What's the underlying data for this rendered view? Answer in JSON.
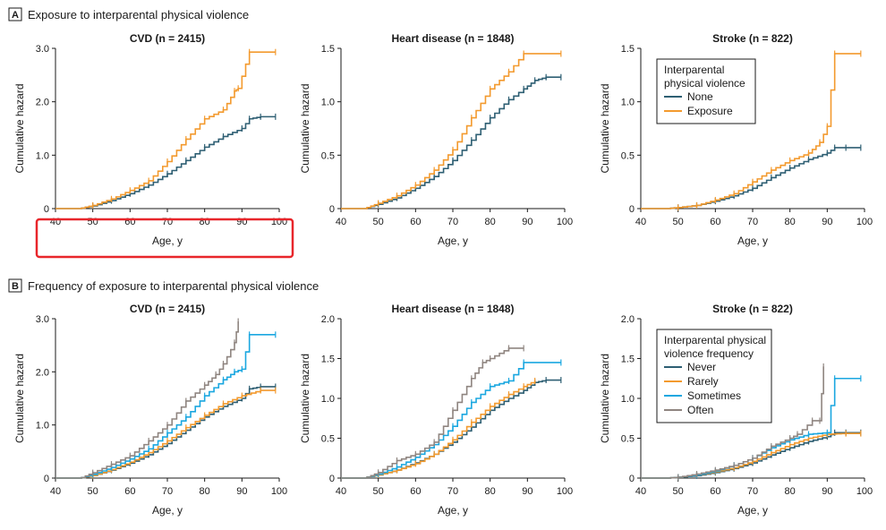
{
  "colors": {
    "none": "#2e5f73",
    "exposure": "#f39a2e",
    "never": "#2e5f73",
    "rarely": "#f39a2e",
    "sometimes": "#1aa7e0",
    "often": "#8f8580",
    "highlight": "#e8262b"
  },
  "sections": [
    {
      "letter": "A",
      "title": "Exposure to interparental physical violence"
    },
    {
      "letter": "B",
      "title": "Frequency of exposure to interparental physical violence"
    }
  ],
  "legends": [
    {
      "title_lines": [
        "Interparental",
        "physical violence"
      ],
      "items": [
        "None",
        "Exposure"
      ]
    },
    {
      "title_lines": [
        "Interparental physical",
        "violence frequency"
      ],
      "items": [
        "Never",
        "Rarely",
        "Sometimes",
        "Often"
      ]
    }
  ],
  "chart_data": [
    {
      "type": "line",
      "section": "A",
      "title": "CVD (n = 2415)",
      "xlabel": "Age, y",
      "ylabel": "Cumulative hazard",
      "xlim": [
        40,
        100
      ],
      "ylim": [
        0,
        3
      ],
      "xticks": [
        "40",
        "50",
        "60",
        "70",
        "80",
        "90",
        "100"
      ],
      "yticks": [
        "0",
        "1.0",
        "2.0",
        "3.0"
      ],
      "series": [
        {
          "name": "None",
          "color_key": "none",
          "x": [
            47,
            50,
            55,
            60,
            65,
            70,
            75,
            80,
            85,
            90,
            92,
            95,
            99
          ],
          "y": [
            0.01,
            0.05,
            0.15,
            0.28,
            0.44,
            0.65,
            0.9,
            1.15,
            1.35,
            1.5,
            1.68,
            1.72,
            1.72
          ]
        },
        {
          "name": "Exposure",
          "color_key": "exposure",
          "x": [
            47,
            50,
            55,
            60,
            65,
            70,
            75,
            80,
            85,
            88,
            89,
            92,
            99
          ],
          "y": [
            0.01,
            0.06,
            0.18,
            0.34,
            0.52,
            0.88,
            1.3,
            1.68,
            1.85,
            2.2,
            2.25,
            2.93,
            2.93
          ]
        }
      ]
    },
    {
      "type": "line",
      "section": "A",
      "title": "Heart disease (n = 1848)",
      "xlabel": "Age, y",
      "ylabel": "Cumulative hazard",
      "xlim": [
        40,
        100
      ],
      "ylim": [
        0,
        1.5
      ],
      "xticks": [
        "40",
        "50",
        "60",
        "70",
        "80",
        "90",
        "100"
      ],
      "yticks": [
        "0",
        "0.5",
        "1.0",
        "1.5"
      ],
      "series": [
        {
          "name": "None",
          "color_key": "none",
          "x": [
            47,
            50,
            55,
            60,
            65,
            70,
            75,
            80,
            85,
            89,
            92,
            95,
            99
          ],
          "y": [
            0.01,
            0.04,
            0.1,
            0.19,
            0.3,
            0.45,
            0.64,
            0.85,
            1.02,
            1.12,
            1.2,
            1.23,
            1.23
          ]
        },
        {
          "name": "Exposure",
          "color_key": "exposure",
          "x": [
            47,
            50,
            55,
            60,
            65,
            70,
            75,
            80,
            85,
            89,
            99
          ],
          "y": [
            0.01,
            0.05,
            0.12,
            0.22,
            0.36,
            0.55,
            0.85,
            1.12,
            1.28,
            1.45,
            1.45
          ]
        }
      ]
    },
    {
      "type": "line",
      "section": "A",
      "title": "Stroke (n = 822)",
      "xlabel": "Age, y",
      "ylabel": "Cumulative hazard",
      "xlim": [
        40,
        100
      ],
      "ylim": [
        0,
        1.5
      ],
      "xticks": [
        "40",
        "50",
        "60",
        "70",
        "80",
        "90",
        "100"
      ],
      "yticks": [
        "0",
        "0.5",
        "1.0",
        "1.5"
      ],
      "legend_index": 0,
      "legend_position": "top-left",
      "series": [
        {
          "name": "None",
          "color_key": "none",
          "x": [
            47,
            50,
            55,
            60,
            65,
            70,
            75,
            80,
            85,
            90,
            92,
            95,
            99
          ],
          "y": [
            0.0,
            0.01,
            0.03,
            0.07,
            0.12,
            0.19,
            0.29,
            0.38,
            0.46,
            0.52,
            0.57,
            0.57,
            0.57
          ]
        },
        {
          "name": "Exposure",
          "color_key": "exposure",
          "x": [
            47,
            50,
            55,
            60,
            65,
            70,
            75,
            80,
            85,
            88,
            90,
            92,
            99
          ],
          "y": [
            0.0,
            0.01,
            0.03,
            0.08,
            0.14,
            0.25,
            0.36,
            0.45,
            0.52,
            0.62,
            0.77,
            1.45,
            1.45
          ]
        }
      ]
    },
    {
      "type": "line",
      "section": "B",
      "title": "CVD (n = 2415)",
      "xlabel": "Age, y",
      "ylabel": "Cumulative hazard",
      "xlim": [
        40,
        100
      ],
      "ylim": [
        0,
        3
      ],
      "xticks": [
        "40",
        "50",
        "60",
        "70",
        "80",
        "90",
        "100"
      ],
      "yticks": [
        "0",
        "1.0",
        "2.0",
        "3.0"
      ],
      "series": [
        {
          "name": "Never",
          "color_key": "never",
          "x": [
            47,
            50,
            55,
            60,
            65,
            70,
            75,
            80,
            85,
            90,
            92,
            95,
            99
          ],
          "y": [
            0.01,
            0.05,
            0.15,
            0.28,
            0.44,
            0.65,
            0.9,
            1.15,
            1.35,
            1.5,
            1.68,
            1.72,
            1.72
          ]
        },
        {
          "name": "Rarely",
          "color_key": "rarely",
          "x": [
            47,
            50,
            55,
            60,
            65,
            70,
            75,
            80,
            85,
            90,
            95,
            99
          ],
          "y": [
            0.01,
            0.05,
            0.16,
            0.3,
            0.48,
            0.7,
            0.95,
            1.18,
            1.4,
            1.55,
            1.65,
            1.65
          ]
        },
        {
          "name": "Sometimes",
          "color_key": "sometimes",
          "x": [
            47,
            50,
            55,
            60,
            65,
            70,
            75,
            80,
            85,
            88,
            90,
            92,
            99
          ],
          "y": [
            0.01,
            0.07,
            0.2,
            0.36,
            0.55,
            0.85,
            1.15,
            1.55,
            1.85,
            2.0,
            2.05,
            2.7,
            2.7
          ]
        },
        {
          "name": "Often",
          "color_key": "often",
          "x": [
            47,
            50,
            55,
            60,
            65,
            70,
            75,
            80,
            83,
            85,
            88,
            89
          ],
          "y": [
            0.01,
            0.1,
            0.26,
            0.42,
            0.7,
            1.0,
            1.45,
            1.75,
            1.95,
            2.15,
            2.55,
            2.95
          ]
        }
      ]
    },
    {
      "type": "line",
      "section": "B",
      "title": "Heart disease (n = 1848)",
      "xlabel": "Age, y",
      "ylabel": "Cumulative hazard",
      "xlim": [
        40,
        100
      ],
      "ylim": [
        0,
        2
      ],
      "xticks": [
        "40",
        "50",
        "60",
        "70",
        "80",
        "90",
        "100"
      ],
      "yticks": [
        "0",
        "0.5",
        "1.0",
        "1.5",
        "2.0"
      ],
      "series": [
        {
          "name": "Never",
          "color_key": "never",
          "x": [
            47,
            50,
            55,
            60,
            65,
            70,
            75,
            80,
            85,
            89,
            92,
            95,
            99
          ],
          "y": [
            0.01,
            0.04,
            0.1,
            0.19,
            0.3,
            0.45,
            0.64,
            0.85,
            1.0,
            1.1,
            1.2,
            1.23,
            1.23
          ]
        },
        {
          "name": "Rarely",
          "color_key": "rarely",
          "x": [
            47,
            50,
            55,
            60,
            65,
            70,
            75,
            80,
            85,
            89,
            92
          ],
          "y": [
            0.01,
            0.04,
            0.1,
            0.18,
            0.3,
            0.48,
            0.7,
            0.9,
            1.05,
            1.15,
            1.22
          ]
        },
        {
          "name": "Sometimes",
          "color_key": "sometimes",
          "x": [
            47,
            50,
            55,
            60,
            65,
            70,
            75,
            80,
            85,
            89,
            99
          ],
          "y": [
            0.01,
            0.05,
            0.14,
            0.26,
            0.42,
            0.65,
            0.95,
            1.15,
            1.22,
            1.45,
            1.45
          ]
        },
        {
          "name": "Often",
          "color_key": "often",
          "x": [
            47,
            50,
            55,
            60,
            65,
            70,
            75,
            78,
            80,
            85,
            89
          ],
          "y": [
            0.01,
            0.07,
            0.22,
            0.3,
            0.45,
            0.85,
            1.25,
            1.45,
            1.5,
            1.63,
            1.63
          ]
        }
      ]
    },
    {
      "type": "line",
      "section": "B",
      "title": "Stroke (n = 822)",
      "xlabel": "Age, y",
      "ylabel": "Cumulative hazard",
      "xlim": [
        40,
        100
      ],
      "ylim": [
        0,
        2
      ],
      "xticks": [
        "40",
        "50",
        "60",
        "70",
        "80",
        "90",
        "100"
      ],
      "yticks": [
        "0",
        "0.5",
        "1.0",
        "1.5",
        "2.0"
      ],
      "legend_index": 1,
      "legend_position": "top-left",
      "series": [
        {
          "name": "Never",
          "color_key": "never",
          "x": [
            47,
            50,
            55,
            60,
            65,
            70,
            75,
            80,
            85,
            90,
            92,
            95,
            99
          ],
          "y": [
            0.0,
            0.01,
            0.03,
            0.07,
            0.12,
            0.19,
            0.29,
            0.38,
            0.46,
            0.52,
            0.57,
            0.57,
            0.57
          ]
        },
        {
          "name": "Rarely",
          "color_key": "rarely",
          "x": [
            47,
            50,
            55,
            60,
            65,
            70,
            75,
            80,
            85,
            90,
            95,
            99
          ],
          "y": [
            0.0,
            0.01,
            0.04,
            0.08,
            0.13,
            0.21,
            0.32,
            0.42,
            0.5,
            0.55,
            0.56,
            0.56
          ]
        },
        {
          "name": "Sometimes",
          "color_key": "sometimes",
          "x": [
            47,
            50,
            55,
            60,
            65,
            70,
            75,
            80,
            85,
            90,
            92,
            99
          ],
          "y": [
            0.0,
            0.01,
            0.04,
            0.09,
            0.16,
            0.25,
            0.38,
            0.48,
            0.55,
            0.57,
            1.25,
            1.25
          ]
        },
        {
          "name": "Often",
          "color_key": "often",
          "x": [
            47,
            50,
            55,
            60,
            65,
            70,
            75,
            80,
            82,
            86,
            88,
            89
          ],
          "y": [
            0.0,
            0.01,
            0.05,
            0.1,
            0.16,
            0.25,
            0.4,
            0.5,
            0.55,
            0.72,
            0.72,
            1.4
          ]
        }
      ]
    }
  ]
}
